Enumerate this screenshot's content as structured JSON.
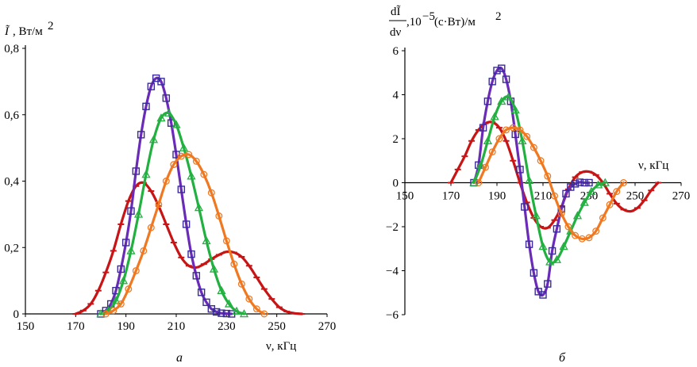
{
  "colors": {
    "red": "#c81414",
    "purple": "#6a2cb8",
    "green": "#22b040",
    "orange": "#f07820",
    "marker_square": "#3a2a9a"
  },
  "chart_data": [
    {
      "type": "line",
      "panel_label": "а",
      "ylabel_main": "Ĩ",
      "ylabel_unit": ", Вт/м",
      "ylabel_sup": "2",
      "xlabel": "ν, кГц",
      "xlim": [
        150,
        270
      ],
      "ylim": [
        0,
        0.8
      ],
      "xticks": [
        150,
        170,
        190,
        210,
        230,
        250,
        270
      ],
      "yticks": [
        0,
        0.2,
        0.4,
        0.6,
        0.8
      ],
      "xtick_labels": [
        "150",
        "170",
        "190",
        "210",
        "230",
        "250",
        "270"
      ],
      "ytick_labels": [
        "0",
        "0,2",
        "0,4",
        "0,6",
        "0,8"
      ],
      "grid": false,
      "series": [
        {
          "color_key": "red",
          "marker": "dash",
          "x": [
            170,
            173,
            176,
            179,
            182,
            185,
            188,
            191,
            194,
            197,
            200,
            203,
            206,
            209,
            212,
            215,
            218,
            221,
            224,
            227,
            230,
            233,
            236,
            239,
            242,
            245,
            248,
            251,
            254,
            257,
            260
          ],
          "y": [
            0,
            0.01,
            0.03,
            0.07,
            0.125,
            0.19,
            0.27,
            0.34,
            0.385,
            0.395,
            0.37,
            0.325,
            0.27,
            0.215,
            0.17,
            0.145,
            0.14,
            0.15,
            0.165,
            0.178,
            0.187,
            0.185,
            0.172,
            0.145,
            0.11,
            0.075,
            0.045,
            0.02,
            0.007,
            0.002,
            0
          ]
        },
        {
          "color_key": "purple",
          "marker": "square",
          "x": [
            180,
            182,
            184,
            186,
            188,
            190,
            192,
            194,
            196,
            198,
            200,
            202,
            204,
            206,
            208,
            210,
            212,
            214,
            216,
            218,
            220,
            222,
            224,
            226,
            228,
            230,
            232
          ],
          "y": [
            0,
            0.01,
            0.03,
            0.07,
            0.135,
            0.215,
            0.31,
            0.43,
            0.54,
            0.625,
            0.685,
            0.71,
            0.7,
            0.65,
            0.575,
            0.48,
            0.375,
            0.27,
            0.18,
            0.115,
            0.065,
            0.035,
            0.015,
            0.006,
            0.002,
            0.001,
            0
          ]
        },
        {
          "color_key": "green",
          "marker": "triangle",
          "x": [
            180,
            183,
            186,
            189,
            192,
            195,
            198,
            201,
            204,
            207,
            210,
            213,
            216,
            219,
            222,
            225,
            228,
            231,
            234,
            237
          ],
          "y": [
            0,
            0.01,
            0.04,
            0.1,
            0.19,
            0.3,
            0.42,
            0.525,
            0.59,
            0.605,
            0.57,
            0.5,
            0.415,
            0.32,
            0.22,
            0.135,
            0.07,
            0.03,
            0.008,
            0
          ]
        },
        {
          "color_key": "orange",
          "marker": "circle",
          "x": [
            182,
            185,
            188,
            191,
            194,
            197,
            200,
            203,
            206,
            209,
            212,
            215,
            218,
            221,
            224,
            227,
            230,
            233,
            236,
            239,
            242,
            245
          ],
          "y": [
            0,
            0.01,
            0.03,
            0.075,
            0.13,
            0.19,
            0.26,
            0.33,
            0.4,
            0.45,
            0.475,
            0.48,
            0.46,
            0.42,
            0.365,
            0.295,
            0.22,
            0.15,
            0.09,
            0.045,
            0.015,
            0
          ]
        }
      ]
    },
    {
      "type": "line",
      "panel_label": "б",
      "ylabel_top": "dĨ",
      "ylabel_bottom": "dν",
      "ylabel_unit": ",10",
      "ylabel_exp": "−5",
      "ylabel_unit2": " (с·Вт)/м",
      "ylabel_sup": "2",
      "xlabel": "ν, кГц",
      "xlim": [
        150,
        270
      ],
      "ylim": [
        -6,
        6
      ],
      "xticks": [
        150,
        170,
        190,
        210,
        230,
        250,
        270
      ],
      "yticks": [
        -6,
        -4,
        -2,
        0,
        2,
        4,
        6
      ],
      "xtick_labels": [
        "150",
        "170",
        "190",
        "210",
        "230",
        "250",
        "270"
      ],
      "ytick_labels": [
        "−6",
        "−4",
        "−2",
        "0",
        "2",
        "4",
        "6"
      ],
      "grid": false,
      "series": [
        {
          "color_key": "red",
          "marker": "dash",
          "x": [
            170,
            173,
            176,
            179,
            182,
            185,
            188,
            191,
            194,
            197,
            200,
            203,
            206,
            209,
            212,
            215,
            218,
            221,
            224,
            227,
            230,
            233,
            236,
            239,
            242,
            245,
            248,
            251,
            254,
            257,
            260
          ],
          "y": [
            0,
            0.6,
            1.2,
            1.9,
            2.4,
            2.7,
            2.75,
            2.5,
            1.9,
            1.0,
            0.0,
            -0.9,
            -1.6,
            -2.0,
            -2.05,
            -1.7,
            -1.1,
            -0.3,
            0.25,
            0.48,
            0.5,
            0.35,
            0.0,
            -0.5,
            -0.95,
            -1.22,
            -1.3,
            -1.15,
            -0.8,
            -0.35,
            0
          ]
        },
        {
          "color_key": "purple",
          "marker": "square",
          "x": [
            180,
            182,
            184,
            186,
            188,
            190,
            192,
            194,
            196,
            198,
            200,
            202,
            204,
            206,
            208,
            210,
            212,
            214,
            216,
            218,
            220,
            222,
            224,
            226,
            228,
            230
          ],
          "y": [
            0,
            0.8,
            2.5,
            3.7,
            4.6,
            5.1,
            5.2,
            4.7,
            3.7,
            2.2,
            0.6,
            -1.1,
            -2.8,
            -4.1,
            -4.95,
            -5.1,
            -4.6,
            -3.1,
            -2.1,
            -1.2,
            -0.5,
            -0.2,
            -0.05,
            0.02,
            0,
            0
          ]
        },
        {
          "color_key": "green",
          "marker": "triangle",
          "x": [
            180,
            183,
            186,
            189,
            192,
            195,
            198,
            201,
            204,
            207,
            210,
            213,
            216,
            219,
            222,
            225,
            228,
            231,
            234,
            237
          ],
          "y": [
            0,
            0.8,
            1.9,
            3.0,
            3.7,
            3.9,
            3.3,
            1.9,
            0.1,
            -1.5,
            -2.9,
            -3.6,
            -3.5,
            -2.9,
            -2.2,
            -1.5,
            -0.9,
            -0.4,
            -0.1,
            0
          ]
        },
        {
          "color_key": "orange",
          "marker": "circle",
          "x": [
            182,
            185,
            188,
            191,
            194,
            197,
            200,
            203,
            206,
            209,
            212,
            215,
            218,
            221,
            224,
            227,
            230,
            233,
            236,
            239,
            242,
            245
          ],
          "y": [
            0,
            0.7,
            1.4,
            2.0,
            2.4,
            2.5,
            2.4,
            2.1,
            1.6,
            1.0,
            0.3,
            -0.6,
            -1.4,
            -2.0,
            -2.4,
            -2.55,
            -2.5,
            -2.2,
            -1.6,
            -1.0,
            -0.4,
            0
          ]
        }
      ]
    }
  ]
}
